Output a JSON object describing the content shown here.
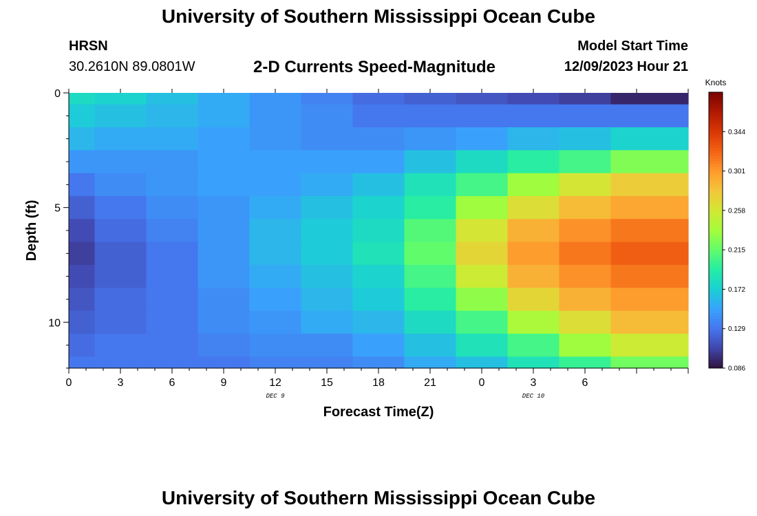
{
  "header": {
    "title": "University of Southern Mississippi Ocean Cube",
    "station": "HRSN",
    "coords": "30.2610N  89.0801W",
    "subtitle": "2-D Currents Speed-Magnitude",
    "model_start_label": "Model Start Time",
    "model_start_value": "12/09/2023 Hour 21"
  },
  "footer": {
    "title": "University of Southern Mississippi Ocean Cube"
  },
  "chart_data": {
    "type": "heatmap",
    "title": "2-D Currents Speed-Magnitude",
    "xlabel": "Forecast Time(Z)",
    "ylabel": "Depth (ft)",
    "x_hours_range": [
      0,
      36
    ],
    "y_range_ft": [
      0,
      12
    ],
    "x_ticks": [
      {
        "h": 0,
        "label": "0"
      },
      {
        "h": 3,
        "label": "3"
      },
      {
        "h": 6,
        "label": "6"
      },
      {
        "h": 9,
        "label": "9"
      },
      {
        "h": 12,
        "label": "12"
      },
      {
        "h": 15,
        "label": "15"
      },
      {
        "h": 18,
        "label": "18"
      },
      {
        "h": 21,
        "label": "21"
      },
      {
        "h": 24,
        "label": "0"
      },
      {
        "h": 27,
        "label": "3"
      },
      {
        "h": 30,
        "label": "6"
      }
    ],
    "date_labels": [
      {
        "h": 12,
        "label": "DEC 9"
      },
      {
        "h": 27,
        "label": "DEC 10"
      }
    ],
    "y_ticks": [
      {
        "d": 0,
        "label": "0"
      },
      {
        "d": 5,
        "label": "5"
      },
      {
        "d": 10,
        "label": "10"
      }
    ],
    "column_hours": [
      0,
      3,
      6,
      9,
      12,
      15,
      18,
      21,
      24,
      27,
      30,
      33
    ],
    "row_depths_ft": [
      0,
      1,
      2,
      3,
      4,
      5,
      6,
      7,
      8,
      9,
      10,
      11,
      12
    ],
    "values_knots": [
      [
        0.18,
        0.175,
        0.165,
        0.155,
        0.145,
        0.135,
        0.125,
        0.12,
        0.115,
        0.11,
        0.105,
        0.095,
        0.086
      ],
      [
        0.17,
        0.165,
        0.16,
        0.155,
        0.145,
        0.14,
        0.13,
        0.13,
        0.13,
        0.13,
        0.13,
        0.13,
        0.13
      ],
      [
        0.16,
        0.155,
        0.155,
        0.15,
        0.145,
        0.14,
        0.14,
        0.145,
        0.15,
        0.16,
        0.165,
        0.175,
        0.18
      ],
      [
        0.145,
        0.145,
        0.145,
        0.15,
        0.15,
        0.15,
        0.15,
        0.165,
        0.18,
        0.195,
        0.205,
        0.225,
        0.25
      ],
      [
        0.13,
        0.14,
        0.145,
        0.15,
        0.15,
        0.155,
        0.165,
        0.185,
        0.205,
        0.235,
        0.26,
        0.275,
        0.285
      ],
      [
        0.12,
        0.13,
        0.14,
        0.145,
        0.155,
        0.165,
        0.175,
        0.195,
        0.235,
        0.265,
        0.285,
        0.295,
        0.31
      ],
      [
        0.11,
        0.125,
        0.135,
        0.145,
        0.16,
        0.17,
        0.18,
        0.21,
        0.26,
        0.29,
        0.305,
        0.315,
        0.33
      ],
      [
        0.105,
        0.12,
        0.13,
        0.145,
        0.16,
        0.17,
        0.185,
        0.215,
        0.27,
        0.3,
        0.315,
        0.325,
        0.345
      ],
      [
        0.11,
        0.12,
        0.13,
        0.145,
        0.155,
        0.165,
        0.175,
        0.205,
        0.255,
        0.29,
        0.305,
        0.315,
        0.33
      ],
      [
        0.115,
        0.125,
        0.13,
        0.14,
        0.15,
        0.16,
        0.17,
        0.195,
        0.23,
        0.27,
        0.29,
        0.3,
        0.31
      ],
      [
        0.12,
        0.125,
        0.13,
        0.14,
        0.145,
        0.155,
        0.16,
        0.18,
        0.205,
        0.24,
        0.265,
        0.285,
        0.29
      ],
      [
        0.125,
        0.13,
        0.13,
        0.135,
        0.14,
        0.14,
        0.15,
        0.165,
        0.185,
        0.205,
        0.235,
        0.255,
        0.265
      ],
      [
        0.13,
        0.13,
        0.13,
        0.13,
        0.135,
        0.135,
        0.14,
        0.155,
        0.165,
        0.185,
        0.2,
        0.22,
        0.24
      ]
    ],
    "colorbar": {
      "label": "Knots",
      "min": 0.086,
      "max": 0.387,
      "ticks": [
        "0.086",
        "0.129",
        "0.172",
        "0.215",
        "0.258",
        "0.301",
        "0.344"
      ]
    },
    "colormap": [
      "#30123b",
      "#4145ab",
      "#4675ed",
      "#39a2fc",
      "#1bcfd4",
      "#24eca6",
      "#61fc6c",
      "#a4fc3b",
      "#d1e834",
      "#f3c63a",
      "#fe9b2d",
      "#f36315",
      "#d93806",
      "#b11901",
      "#7a0402"
    ]
  }
}
